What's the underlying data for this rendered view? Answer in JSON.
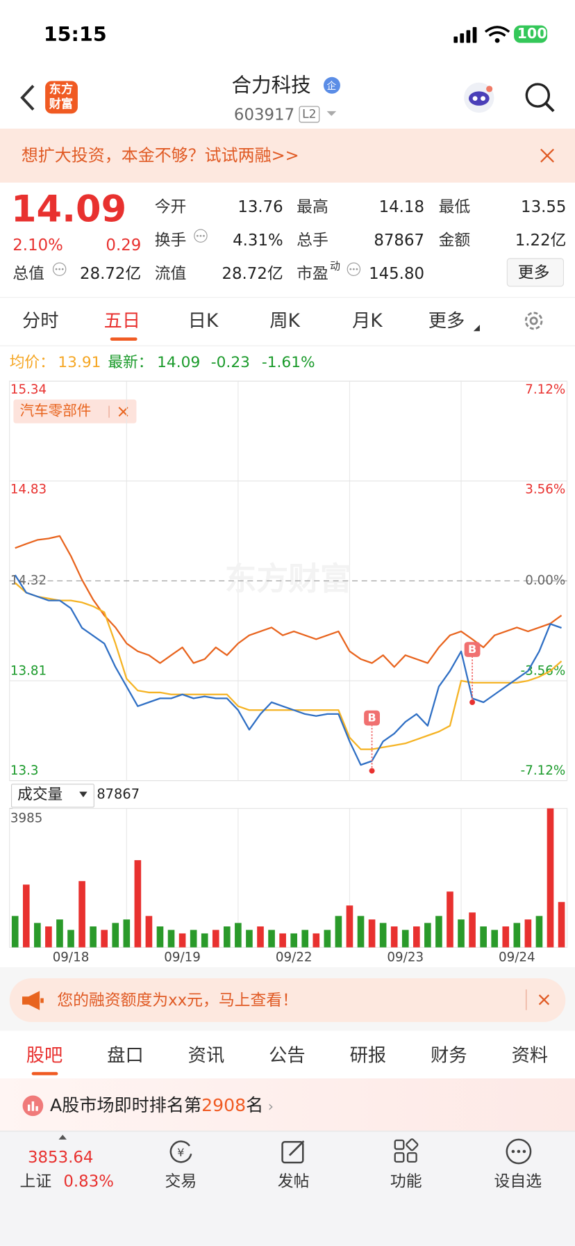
{
  "status_bar": {
    "time": "15:15",
    "battery": "100"
  },
  "header": {
    "logo": [
      "东方",
      "财富"
    ],
    "title": "合力科技",
    "badge": "企",
    "code": "603917",
    "level": "L2"
  },
  "banner": {
    "text": "想扩大投资，本金不够？试试两融>>"
  },
  "quote": {
    "price": "14.09",
    "change_pct": "2.10%",
    "change": "0.29",
    "more": "更多",
    "fields": [
      {
        "label": "今开",
        "value": "13.76"
      },
      {
        "label": "最高",
        "value": "14.18"
      },
      {
        "label": "最低",
        "value": "13.55"
      },
      {
        "label": "换手",
        "value": "4.31%"
      },
      {
        "label": "总手",
        "value": "87867"
      },
      {
        "label": "金额",
        "value": "1.22亿"
      },
      {
        "label": "总值",
        "value": "28.72亿"
      },
      {
        "label": "流值",
        "value": "28.72亿"
      },
      {
        "label": "市盈",
        "sup": "动",
        "value": "145.80"
      }
    ]
  },
  "chart_tabs": [
    "分时",
    "五日",
    "日K",
    "周K",
    "月K",
    "更多"
  ],
  "chart_info": {
    "avg_label": "均价：",
    "avg": "13.91",
    "last_label": "最新：",
    "last": "14.09",
    "change": "-0.23",
    "change_pct": "-1.61%"
  },
  "chart_data": [
    {
      "type": "line",
      "watermark": "东方财富",
      "ylim": [
        13.3,
        15.34
      ],
      "yticks": [
        15.34,
        14.83,
        14.32,
        13.81,
        13.3
      ],
      "y2lim": [
        -7.12,
        7.12
      ],
      "y2ticks": [
        {
          "value": 7.12,
          "label": "7.12%"
        },
        {
          "value": 3.56,
          "label": "3.56%"
        },
        {
          "value": 0,
          "label": "0.00%"
        },
        {
          "value": -3.56,
          "label": "-3.56%"
        },
        {
          "value": -7.12,
          "label": "-7.12%"
        }
      ],
      "series": [
        {
          "name": "汽车零部件",
          "color": "#e8641e",
          "axis": "y2",
          "values": [
            1.17,
            1.32,
            1.46,
            1.51,
            1.6,
            0.89,
            0.04,
            -0.67,
            -1.23,
            -1.66,
            -2.23,
            -2.51,
            -2.65,
            -2.93,
            -2.65,
            -2.37,
            -2.93,
            -2.79,
            -2.37,
            -2.65,
            -2.23,
            -1.94,
            -1.8,
            -1.66,
            -1.94,
            -1.8,
            -1.94,
            -2.08,
            -1.94,
            -1.8,
            -2.51,
            -2.79,
            -2.93,
            -2.65,
            -3.07,
            -2.65,
            -2.79,
            -2.93,
            -2.37,
            -1.94,
            -1.8,
            -2.08,
            -2.37,
            -1.94,
            -1.8,
            -1.66,
            -1.8,
            -1.66,
            -1.52,
            -1.23
          ]
        },
        {
          "color": "#f5b324",
          "values": [
            14.31,
            14.26,
            14.24,
            14.23,
            14.22,
            14.22,
            14.21,
            14.19,
            14.16,
            14.0,
            13.82,
            13.76,
            13.75,
            13.75,
            13.74,
            13.74,
            13.74,
            13.74,
            13.74,
            13.74,
            13.68,
            13.66,
            13.66,
            13.66,
            13.66,
            13.66,
            13.66,
            13.66,
            13.66,
            13.66,
            13.52,
            13.46,
            13.46,
            13.47,
            13.48,
            13.49,
            13.51,
            13.53,
            13.55,
            13.58,
            13.81,
            13.8,
            13.8,
            13.8,
            13.8,
            13.8,
            13.81,
            13.83,
            13.86,
            13.91
          ]
        },
        {
          "color": "#2f6fc4",
          "values": [
            14.35,
            14.26,
            14.24,
            14.22,
            14.22,
            14.18,
            14.08,
            14.04,
            14.0,
            13.88,
            13.78,
            13.68,
            13.7,
            13.72,
            13.72,
            13.74,
            13.72,
            13.73,
            13.72,
            13.72,
            13.66,
            13.56,
            13.64,
            13.7,
            13.68,
            13.66,
            13.64,
            13.63,
            13.64,
            13.64,
            13.5,
            13.38,
            13.4,
            13.5,
            13.54,
            13.6,
            13.64,
            13.58,
            13.78,
            13.86,
            13.96,
            13.72,
            13.7,
            13.74,
            13.78,
            13.82,
            13.86,
            13.96,
            14.1,
            14.08
          ]
        }
      ],
      "markers": [
        {
          "label": "B",
          "x": 32,
          "y": 13.35
        },
        {
          "label": "B",
          "x": 41,
          "y": 13.7
        }
      ]
    },
    {
      "type": "bar",
      "title": "成交量",
      "total": "87867",
      "ylim": [
        0,
        3985
      ],
      "yticks": [
        3985
      ],
      "categories": [
        null,
        null,
        null,
        null,
        null,
        "09/18",
        null,
        null,
        null,
        null,
        null,
        null,
        null,
        null,
        null,
        "09/19",
        null,
        null,
        null,
        null,
        null,
        null,
        null,
        null,
        null,
        "09/22",
        null,
        null,
        null,
        null,
        null,
        null,
        null,
        null,
        null,
        "09/23",
        null,
        null,
        null,
        null,
        null,
        null,
        null,
        null,
        null,
        "09/24",
        null,
        null,
        null,
        null
      ],
      "values": [
        900,
        1800,
        700,
        600,
        800,
        500,
        1900,
        600,
        500,
        700,
        800,
        2500,
        900,
        600,
        500,
        400,
        500,
        400,
        500,
        600,
        700,
        500,
        600,
        500,
        400,
        400,
        500,
        400,
        500,
        900,
        1200,
        900,
        800,
        700,
        600,
        500,
        600,
        700,
        900,
        1600,
        800,
        1000,
        600,
        500,
        600,
        700,
        800,
        900,
        3985,
        1300
      ],
      "colors": [
        "#2a9a2a",
        "#e8312f",
        "#2a9a2a",
        "#e8312f",
        "#2a9a2a",
        "#2a9a2a",
        "#e8312f",
        "#2a9a2a",
        "#e8312f",
        "#2a9a2a",
        "#2a9a2a",
        "#e8312f",
        "#e8312f",
        "#2a9a2a",
        "#2a9a2a",
        "#e8312f",
        "#2a9a2a",
        "#2a9a2a",
        "#e8312f",
        "#2a9a2a",
        "#2a9a2a",
        "#2a9a2a",
        "#e8312f",
        "#2a9a2a",
        "#e8312f",
        "#2a9a2a",
        "#2a9a2a",
        "#e8312f",
        "#2a9a2a",
        "#2a9a2a",
        "#e8312f",
        "#2a9a2a",
        "#e8312f",
        "#2a9a2a",
        "#e8312f",
        "#2a9a2a",
        "#e8312f",
        "#2a9a2a",
        "#2a9a2a",
        "#e8312f",
        "#2a9a2a",
        "#e8312f",
        "#2a9a2a",
        "#2a9a2a",
        "#e8312f",
        "#2a9a2a",
        "#e8312f",
        "#2a9a2a",
        "#e8312f",
        "#e8312f"
      ]
    }
  ],
  "promo": {
    "text": "您的融资额度为xx元，马上查看！"
  },
  "content_tabs": [
    "股吧",
    "盘口",
    "资讯",
    "公告",
    "研报",
    "财务",
    "资料"
  ],
  "ranking": {
    "prefix": "A股市场即时排名第",
    "rank": "2908",
    "suffix": "名"
  },
  "bottom_bar": {
    "index_value": "3853.64",
    "index_name": "上证",
    "index_change": "0.83%",
    "items": [
      "交易",
      "发帖",
      "功能",
      "设自选"
    ]
  }
}
